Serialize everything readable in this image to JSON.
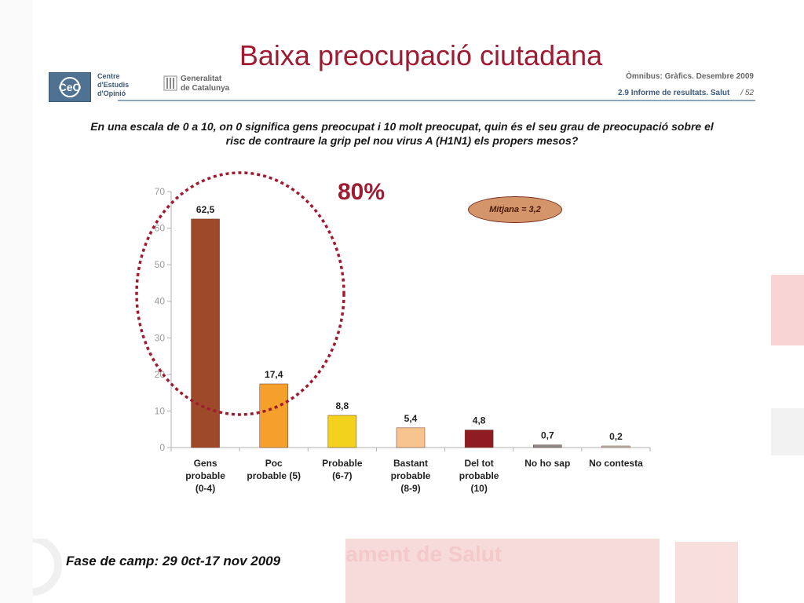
{
  "slide_title": "Baixa preocupació ciutadana",
  "header": {
    "ceo_logo_text": "CeO",
    "ceo_name_lines": [
      "Centre",
      "d'Estudis",
      "d'Opinió"
    ],
    "gov_name_lines": [
      "Generalitat",
      "de Catalunya"
    ],
    "report_line": "Òmnibus: Gràfics. Desembre 2009",
    "section_line": "2.9 Informe de resultats. Salut",
    "page": "/ 52"
  },
  "question_lines": [
    "En una escala de 0 a 10, on 0 significa gens preocupat i 10 molt preocupat, quin és el seu grau de preocupació sobre el",
    "risc de contraure la grip pel nou virus A (H1N1) els propers mesos?"
  ],
  "annotation_pct": "80%",
  "mitjana_label": "Mitjana = 3,2",
  "background_text": "ament de Salut",
  "footer_note": "Fase de camp: 29 0ct-17 nov 2009",
  "colors": {
    "title": "#9e1b32",
    "circle": "#9e1b32",
    "bars": [
      "#9e4a2a",
      "#f5a02a",
      "#f2d21c",
      "#f7c48f",
      "#8e1c22",
      "#8a8a8a",
      "#c9c9c9"
    ]
  },
  "chart_data": {
    "type": "bar",
    "categories": [
      [
        "Gens",
        "probable",
        "(0-4)"
      ],
      [
        "Poc",
        "probable (5)"
      ],
      [
        "Probable",
        "(6-7)"
      ],
      [
        "Bastant",
        "probable",
        "(8-9)"
      ],
      [
        "Del tot",
        "probable",
        "(10)"
      ],
      [
        "No ho sap"
      ],
      [
        "No contesta"
      ]
    ],
    "values": [
      62.5,
      17.4,
      8.8,
      5.4,
      4.8,
      0.7,
      0.2
    ],
    "value_labels": [
      "62,5",
      "17,4",
      "8,8",
      "5,4",
      "4,8",
      "0,7",
      "0,2"
    ],
    "yticks": [
      "0",
      "10",
      "20",
      "30",
      "40",
      "50",
      "60",
      "70"
    ],
    "ylim": [
      0,
      70
    ],
    "grid": false,
    "legend": "none"
  }
}
